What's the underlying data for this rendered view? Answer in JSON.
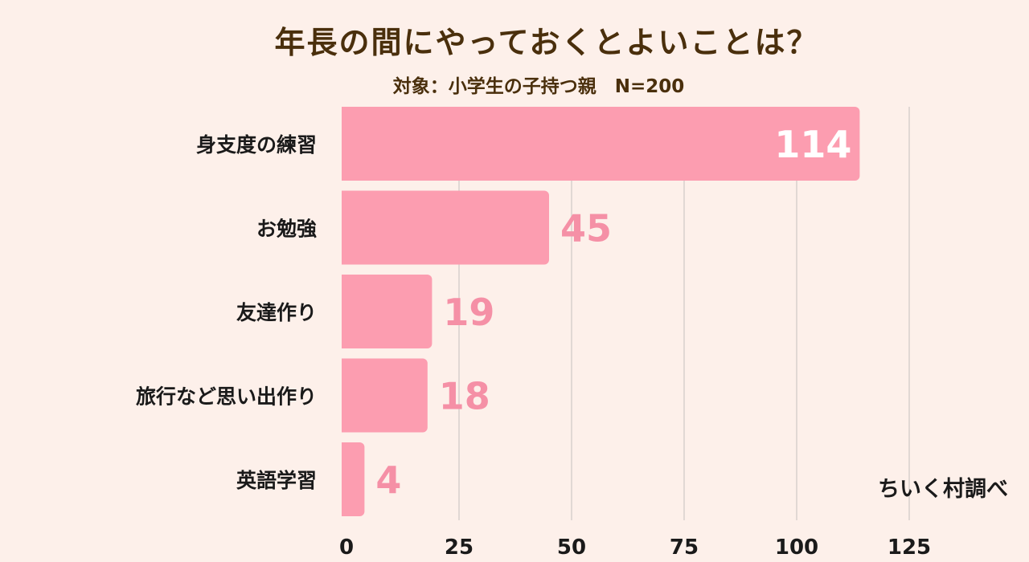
{
  "chart_data": {
    "type": "bar",
    "orientation": "horizontal",
    "title": "年長の間にやっておくとよいことは？",
    "subtitle": "対象：小学生の子持つ親　N=200",
    "source": "ちいく村調べ",
    "categories": [
      "身支度の練習",
      "お勉強",
      "友達作り",
      "旅行など思い出作り",
      "英語学習"
    ],
    "values": [
      114,
      45,
      19,
      18,
      4
    ],
    "xlim": [
      0,
      125
    ],
    "xticks": [
      "0",
      "25",
      "50",
      "75",
      "100",
      "125"
    ],
    "grid": true,
    "legend": "none"
  },
  "colors": {
    "background": "#fdf0ea",
    "bar": "#fc9db0",
    "value_label": "#f590a6",
    "value_label_inside": "#ffffff",
    "grid": "#d8d0cc",
    "text": "#1a1a1a",
    "title": "#4a2f0c"
  }
}
